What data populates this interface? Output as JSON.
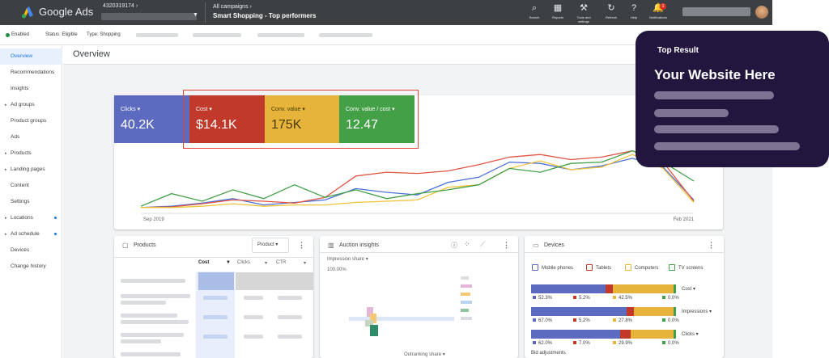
{
  "app": {
    "brand": "Google Ads",
    "account_id": "4320319174"
  },
  "breadcrumb": {
    "parent": "All campaigns",
    "current": "Smart Shopping - Top performers"
  },
  "toolbar": [
    {
      "icon": "search-icon",
      "glyph": "⌕",
      "label": "Search"
    },
    {
      "icon": "reports-icon",
      "glyph": "▦",
      "label": "Reports"
    },
    {
      "icon": "tools-icon",
      "glyph": "⚒",
      "label": "Tools and settings"
    },
    {
      "icon": "refresh-icon",
      "glyph": "↻",
      "label": "Refresh"
    },
    {
      "icon": "help-icon",
      "glyph": "?",
      "label": "Help"
    },
    {
      "icon": "bell-icon",
      "glyph": "🔔",
      "label": "Notifications"
    }
  ],
  "notifications_count": "1",
  "status": {
    "enabled": "Enabled",
    "status": "Status: Eligible",
    "type": "Type: Shopping"
  },
  "sidebar": [
    {
      "label": "Overview",
      "active": true
    },
    {
      "label": "Recommendations"
    },
    {
      "label": "Insights"
    },
    {
      "label": "Ad groups",
      "arrow": true
    },
    {
      "label": "Product groups"
    },
    {
      "label": "Ads"
    },
    {
      "label": "Products",
      "arrow": true
    },
    {
      "label": "Landing pages",
      "arrow": true
    },
    {
      "label": "Content"
    },
    {
      "label": "Settings"
    },
    {
      "label": "Locations",
      "arrow": true,
      "dot": true
    },
    {
      "label": "Ad schedule",
      "arrow": true,
      "dot": true
    },
    {
      "label": "Devices"
    },
    {
      "label": "Change history"
    }
  ],
  "overview": {
    "title": "Overview"
  },
  "metrics": [
    {
      "label": "Clicks",
      "value": "40.2K",
      "color": "#5c6bc0"
    },
    {
      "label": "Cost",
      "value": "$14.1K",
      "color": "#c0392b"
    },
    {
      "label": "Conv. value",
      "value": "175K",
      "color": "#e6b43b"
    },
    {
      "label": "Conv. value / cost",
      "value": "12.47",
      "color": "#43a047"
    }
  ],
  "chart_data": {
    "type": "line",
    "x_start_label": "Sep 2019",
    "x_end_label": "Feb 2021",
    "ylim": [
      0,
      100
    ],
    "series": [
      {
        "name": "Clicks",
        "color": "#4a6fd6",
        "values": [
          8,
          10,
          15,
          22,
          12,
          16,
          20,
          38,
          32,
          28,
          48,
          56,
          80,
          78,
          68,
          74,
          86,
          72,
          20
        ]
      },
      {
        "name": "Cost",
        "color": "#e05544",
        "values": [
          8,
          9,
          14,
          20,
          18,
          15,
          24,
          58,
          64,
          62,
          66,
          76,
          88,
          92,
          84,
          88,
          98,
          80,
          18
        ]
      },
      {
        "name": "Conv. value",
        "color": "#f0c43a",
        "values": [
          8,
          8,
          10,
          14,
          10,
          12,
          12,
          16,
          18,
          20,
          40,
          44,
          70,
          82,
          68,
          72,
          92,
          70,
          16
        ]
      },
      {
        "name": "Conv. value / cost",
        "color": "#43a047",
        "values": [
          10,
          30,
          18,
          36,
          22,
          44,
          24,
          36,
          22,
          30,
          36,
          44,
          70,
          64,
          78,
          80,
          98,
          80,
          50
        ]
      }
    ]
  },
  "products": {
    "title": "Products",
    "selector": "Product",
    "columns": [
      "Cost",
      "Clicks",
      "CTR"
    ]
  },
  "auction": {
    "title": "Auction insights",
    "metric": "Impression share",
    "top_value": "100.00%",
    "footer": "Outranking share"
  },
  "devices": {
    "title": "Devices",
    "legend": [
      {
        "label": "Mobile phones",
        "color": "#5c6bc0"
      },
      {
        "label": "Tablets",
        "color": "#c0392b"
      },
      {
        "label": "Computers",
        "color": "#e6b43b"
      },
      {
        "label": "TV screens",
        "color": "#43a047"
      }
    ],
    "rows": [
      {
        "metric": "Cost",
        "values": [
          52.3,
          5.2,
          42.5,
          0.0
        ],
        "labels": [
          "52.3%",
          "5.2%",
          "42.5%",
          "0.0%"
        ]
      },
      {
        "metric": "Impressions",
        "values": [
          67.0,
          5.2,
          27.8,
          0.0
        ],
        "labels": [
          "67.0%",
          "5.2%",
          "27.8%",
          "0.0%"
        ]
      },
      {
        "metric": "Clicks",
        "values": [
          62.0,
          7.0,
          29.9,
          0.0
        ],
        "labels": [
          "62.0%",
          "7.0%",
          "29.9%",
          "0.0%"
        ]
      }
    ],
    "footer": "Bid adjustments"
  },
  "overlay": {
    "tag": "Top Result",
    "headline": "Your Website Here"
  }
}
